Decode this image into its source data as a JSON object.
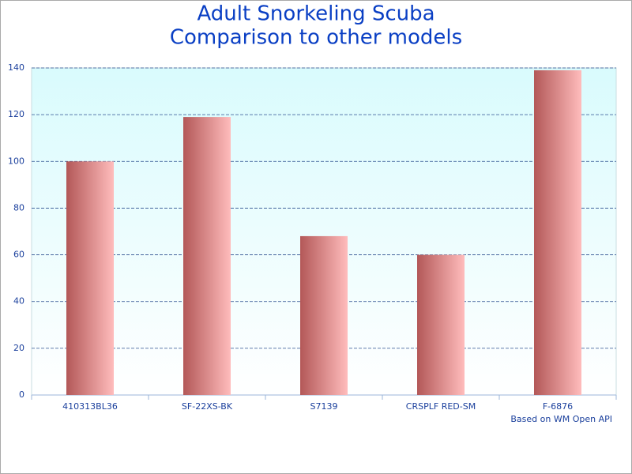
{
  "chart_data": {
    "type": "bar",
    "title": [
      "Adult Snorkeling Scuba",
      "Comparison to other models"
    ],
    "categories": [
      "410313BL36",
      "SF-22XS-BK",
      "S7139",
      "CRSPLF RED-SM",
      "F-6876"
    ],
    "values": [
      100,
      119,
      68,
      60,
      139
    ],
    "color": [
      "#b35858",
      "#ffbcbc"
    ],
    "ylim": [
      0,
      140
    ],
    "yticks": [
      0,
      20,
      40,
      60,
      80,
      100,
      120,
      140
    ],
    "grid": true,
    "annotation": "Based on WM Open API"
  }
}
